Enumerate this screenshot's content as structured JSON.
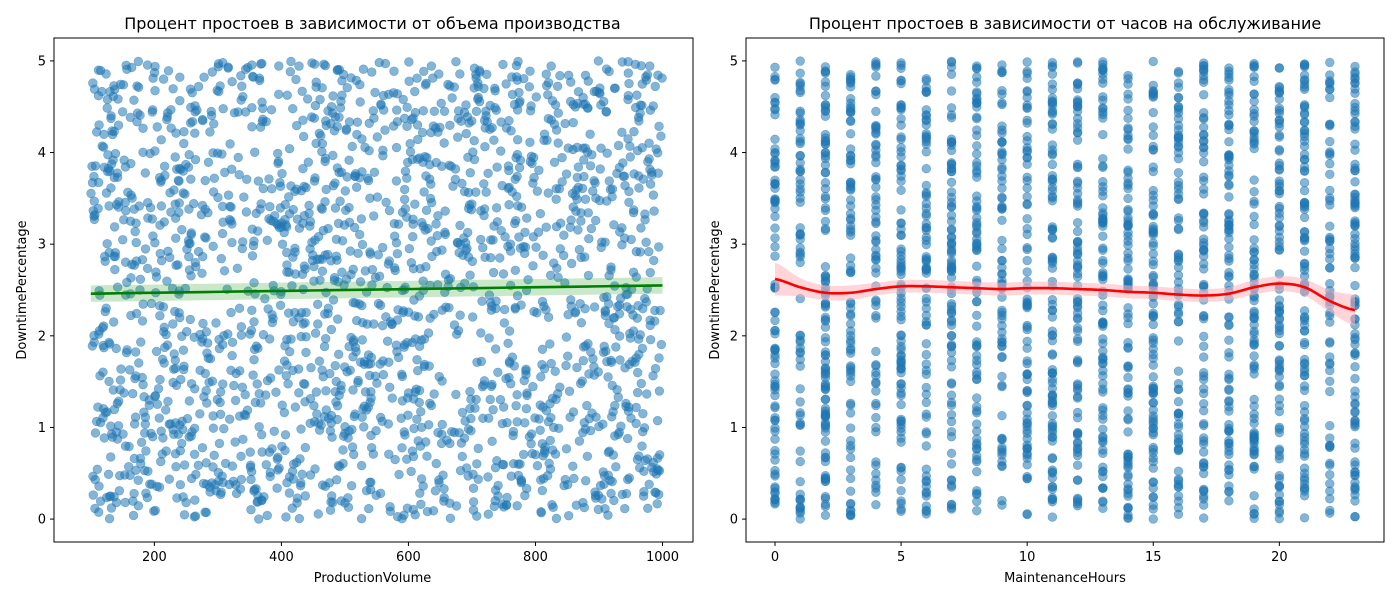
{
  "chart_data": [
    {
      "type": "scatter",
      "title": "Процент простоев в зависимости от объема производства",
      "xlabel": "ProductionVolume",
      "ylabel": "DowntimePercentage",
      "xlim": [
        42,
        1048
      ],
      "ylim": [
        -0.25,
        5.25
      ],
      "xticks": [
        200,
        400,
        600,
        800,
        1000
      ],
      "yticks": [
        0,
        1,
        2,
        3,
        4,
        5
      ],
      "grid": false,
      "point_color": "#1f77b4",
      "point_alpha": 0.55,
      "point_count": 2000,
      "x_range": [
        100,
        1000
      ],
      "y_range": [
        0,
        5
      ],
      "trend": {
        "type": "linear",
        "color": "#008000",
        "band_color": "#2ca02c",
        "x": [
          100,
          1000
        ],
        "y": [
          2.46,
          2.55
        ],
        "band_halfwidth": [
          0.09,
          0.09
        ]
      }
    },
    {
      "type": "scatter",
      "title": "Процент простоев в зависимости от часов на обслуживание",
      "xlabel": "MaintenanceHours",
      "ylabel": "DowntimePercentage",
      "xlim": [
        -1.15,
        24.15
      ],
      "ylim": [
        -0.25,
        5.25
      ],
      "xticks": [
        0,
        5,
        10,
        15,
        20
      ],
      "yticks": [
        0,
        1,
        2,
        3,
        4,
        5
      ],
      "grid": false,
      "point_color": "#1f77b4",
      "point_alpha": 0.55,
      "point_count": 2000,
      "x_categories": [
        0,
        1,
        2,
        3,
        4,
        5,
        6,
        7,
        8,
        9,
        10,
        11,
        12,
        13,
        14,
        15,
        16,
        17,
        18,
        19,
        20,
        21,
        22,
        23
      ],
      "y_range": [
        0,
        5
      ],
      "trend": {
        "type": "lowess",
        "color": "#ff0000",
        "band_color": "#ffb3ba",
        "x": [
          0,
          1,
          2,
          3,
          4,
          5,
          6,
          7,
          8,
          9,
          10,
          11,
          12,
          13,
          14,
          15,
          16,
          17,
          18,
          19,
          20,
          21,
          22,
          23
        ],
        "y": [
          2.62,
          2.53,
          2.47,
          2.47,
          2.51,
          2.54,
          2.54,
          2.53,
          2.52,
          2.51,
          2.52,
          2.52,
          2.51,
          2.5,
          2.48,
          2.47,
          2.45,
          2.44,
          2.46,
          2.53,
          2.57,
          2.53,
          2.38,
          2.28
        ],
        "band_halfwidth": [
          0.18,
          0.1,
          0.08,
          0.08,
          0.07,
          0.07,
          0.07,
          0.07,
          0.07,
          0.07,
          0.07,
          0.07,
          0.07,
          0.07,
          0.07,
          0.07,
          0.07,
          0.07,
          0.07,
          0.08,
          0.08,
          0.09,
          0.12,
          0.17
        ]
      }
    }
  ]
}
